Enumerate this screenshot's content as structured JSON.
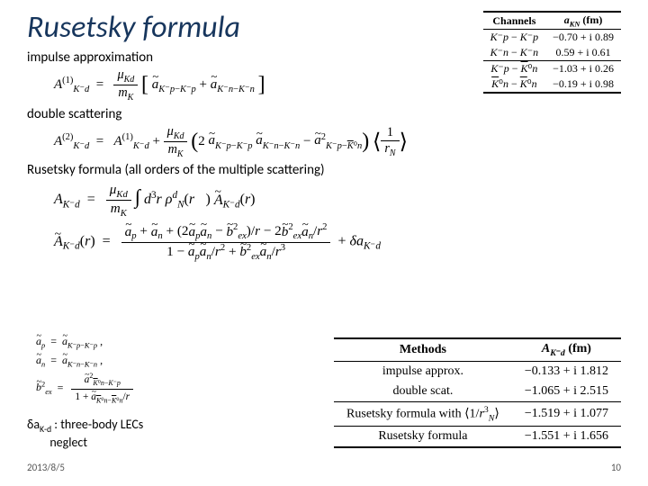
{
  "title": {
    "text": "Rusetsky formula",
    "fontsize": 34,
    "color": "#17365d",
    "italic": true
  },
  "sections": {
    "impulse": "impulse approximation",
    "double": "double scattering",
    "full": "Rusetsky formula (all orders of the multiple scattering)"
  },
  "equations": {
    "impulse": "A^{(1)}_{K⁻d} = (μ_{Kd}/m_K) [ ã_{K⁻p−K⁻p} + ã_{K⁻n−K⁻n} ]",
    "double": "A^{(2)}_{K⁻d} = A^{(1)}_{K⁻d} + (μ_{Kd}/m_K) ( 2 ã_{K⁻p−K⁻p} ã_{K⁻n−K⁻n} − ã²_{K⁻p−K̄⁰n} ) ⟨1/r_N⟩",
    "full_A": "A_{K⁻d} = (μ_{Kd}/m_K) ∫ d³r ρ_N^d(r) Ã_{K⁻d}(r)",
    "full_Atilde": "Ã_{K⁻d}(r) = [ ã_p + ã_n + (2 ã_p ã_n − b̃²_ex)/r − 2 b̃²_ex ã_n / r² ] / [ 1 − ã_p ã_n / r² + b̃²_ex ã_n / r³ ] + δa_{K⁻d}",
    "defs_ap": "ã_p = ã_{K⁻p−K⁻p}",
    "defs_an": "ã_n = ã_{K⁻n−K⁻n}",
    "defs_bex": "b̃²_ex = ã²_{K̄⁰n−K⁻p} / (1 + ã_{K̄⁰n−K̄⁰n}/r)"
  },
  "delta_note": {
    "line1_prefix": "δa",
    "line1_sub": "K-d",
    "line1_rest": " : three-body LECs",
    "line2": "neglect"
  },
  "channels_table": {
    "header": [
      "Channels",
      "a_{KN} (fm)"
    ],
    "rows": [
      [
        "K⁻p − K⁻p",
        "−0.70 + i 0.89"
      ],
      [
        "K⁻n − K⁻n",
        "0.59 + i 0.61"
      ],
      [
        "K⁻p − K̄⁰n",
        "−1.03 + i 0.26"
      ],
      [
        "K̄⁰n − K̄⁰n",
        "−0.19 + i 0.98"
      ]
    ],
    "colors": {
      "border": "#000000",
      "text": "#000000"
    },
    "font_family": "Times New Roman",
    "fontsize": 12
  },
  "methods_table": {
    "header": [
      "Methods",
      "A_{K⁻d} (fm)"
    ],
    "rows": [
      [
        "impulse approx.",
        "−0.133 + i 1.812"
      ],
      [
        "double scat.",
        "−1.065 + i 2.515"
      ],
      [
        "Rusetsky formula with ⟨1/r³_N⟩",
        "−1.519 + i 1.077"
      ],
      [
        "Rusetsky formula",
        "−1.551 + i 1.656"
      ]
    ],
    "colors": {
      "border": "#000000",
      "text": "#000000"
    },
    "font_family": "Times New Roman",
    "fontsize": 14
  },
  "footer": {
    "date": "2013/8/5",
    "page": "10"
  },
  "style": {
    "background_color": "#ffffff",
    "body_font": "Calibri",
    "math_font": "Times New Roman",
    "section_fontsize": 15
  }
}
